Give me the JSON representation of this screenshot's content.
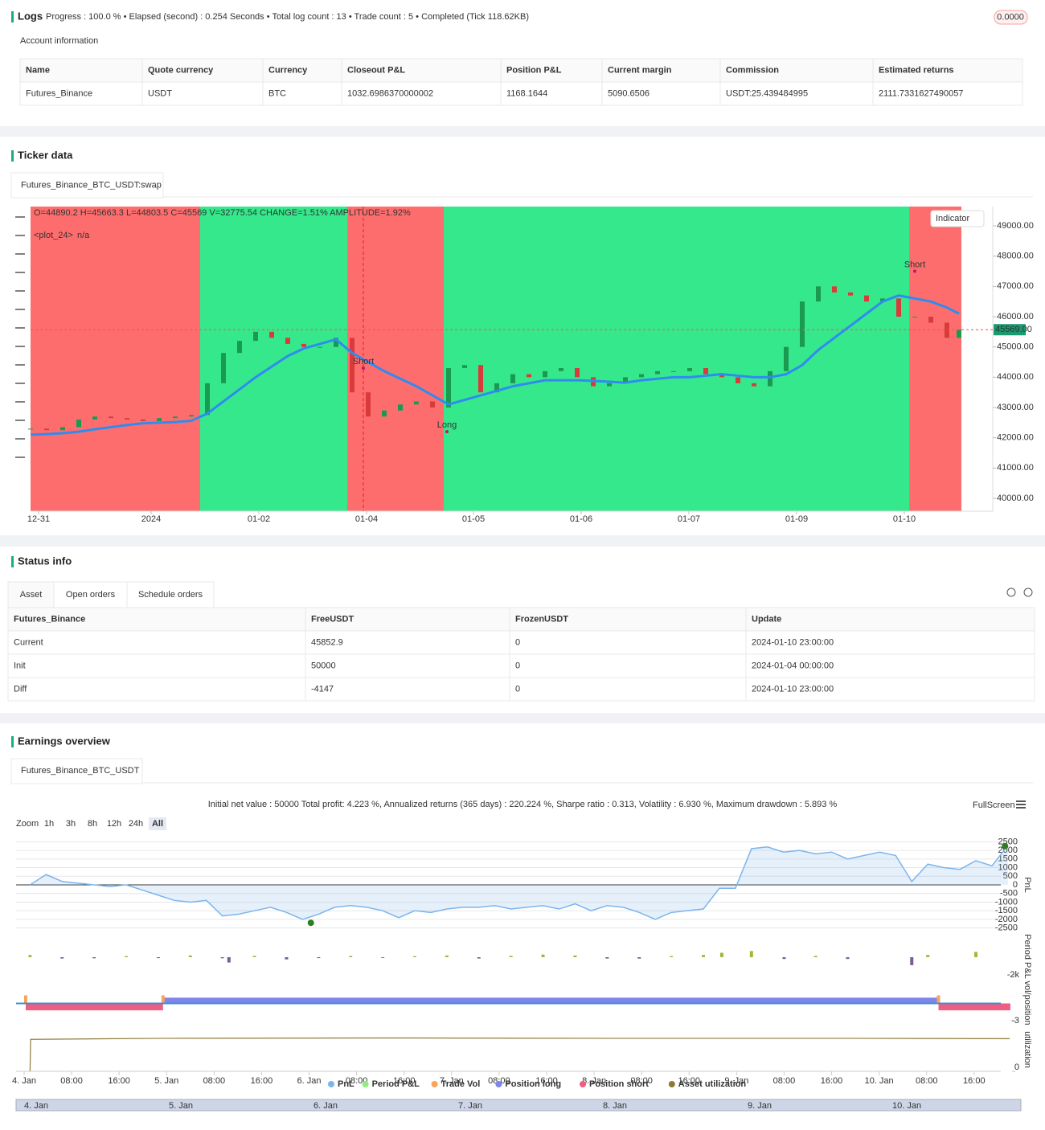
{
  "logs": {
    "title": "Logs",
    "summary": "Progress : 100.0 % • Elapsed (second) : 0.254 Seconds • Total log count : 13 • Trade count : 5 • Completed (Tick 118.62KB)",
    "badge": "0.0000"
  },
  "account": {
    "title": "Account information",
    "headers": [
      "Name",
      "Quote currency",
      "Currency",
      "Closeout P&L",
      "Position P&L",
      "Current margin",
      "Commission",
      "Estimated returns"
    ],
    "rows": [
      [
        "Futures_Binance",
        "USDT",
        "BTC",
        "1032.6986370000002",
        "1168.1644",
        "5090.6506",
        "USDT:25.439484995",
        "2111.7331627490057"
      ]
    ]
  },
  "ticker": {
    "title": "Ticker data",
    "tab": "Futures_Binance_BTC_USDT:swap",
    "chart": {
      "type": "candlestick",
      "ohlc_text": "O=44890.2 H=45663.3 L=44803.5 C=45569 V=32775.54 CHANGE=1.51% AMPLITUDE=1.92%",
      "plot_label": "<plot_24>",
      "plot_value": "n/a",
      "indicator_button": "Indicator",
      "last_price": {
        "value": 45569,
        "label": "45569.00"
      },
      "xlim": [
        0,
        60
      ],
      "ylim": [
        39575,
        49637
      ],
      "yticks": [
        {
          "value": 40000,
          "label": "40000.00"
        },
        {
          "value": 41000,
          "label": "41000.00"
        },
        {
          "value": 42000,
          "label": "42000.00"
        },
        {
          "value": 43000,
          "label": "43000.00"
        },
        {
          "value": 44000,
          "label": "44000.00"
        },
        {
          "value": 45000,
          "label": "45000.00"
        },
        {
          "value": 46000,
          "label": "46000.00"
        },
        {
          "value": 47000,
          "label": "47000.00"
        },
        {
          "value": 48000,
          "label": "48000.00"
        },
        {
          "value": 49000,
          "label": "49000.00"
        }
      ],
      "xticks": [
        {
          "value": 0.5,
          "label": "12-31"
        },
        {
          "value": 7.5,
          "label": "2024"
        },
        {
          "value": 14.2,
          "label": "01-02"
        },
        {
          "value": 20.9,
          "label": "01-04"
        },
        {
          "value": 27.55,
          "label": "01-05"
        },
        {
          "value": 34.25,
          "label": "01-06"
        },
        {
          "value": 40.95,
          "label": "01-07"
        },
        {
          "value": 47.65,
          "label": "01-09"
        },
        {
          "value": 54.35,
          "label": "01-10"
        }
      ],
      "regions": [
        {
          "start": 0,
          "end": 10.55,
          "color": "#fe6d6d"
        },
        {
          "start": 10.55,
          "end": 19.7,
          "color": "#35e88c"
        },
        {
          "start": 19.7,
          "end": 25.7,
          "color": "#fe6d6d"
        },
        {
          "start": 25.7,
          "end": 54.65,
          "color": "#35e88c"
        },
        {
          "start": 54.65,
          "end": 57.9,
          "color": "#fe6d6d"
        }
      ],
      "x": [
        0,
        1,
        2,
        3,
        4,
        5,
        6,
        7,
        8,
        9,
        10,
        11,
        12,
        13,
        14,
        15,
        16,
        17,
        18,
        19,
        20,
        21,
        22,
        23,
        24,
        25,
        26,
        27,
        28,
        29,
        30,
        31,
        32,
        33,
        34,
        35,
        36,
        37,
        38,
        39,
        40,
        41,
        42,
        43,
        44,
        45,
        46,
        47,
        48,
        49,
        50,
        51,
        52,
        53,
        54,
        55,
        56,
        57,
        57.75
      ],
      "close": [
        42300,
        42250,
        42350,
        42600,
        42700,
        42650,
        42600,
        42550,
        42650,
        42700,
        42750,
        43800,
        44800,
        45200,
        45500,
        45300,
        45100,
        45000,
        45000,
        45300,
        43500,
        42700,
        42900,
        43100,
        43200,
        43000,
        44300,
        44400,
        43500,
        43800,
        44100,
        44000,
        44200,
        44300,
        44000,
        43700,
        43800,
        44000,
        44100,
        44200,
        44200,
        44300,
        44100,
        44000,
        43800,
        43700,
        44200,
        45000,
        46500,
        47000,
        46800,
        46700,
        46500,
        46600,
        46000,
        46000,
        45800,
        45300,
        45569
      ],
      "ma": [
        42100,
        42120,
        42150,
        42200,
        42280,
        42350,
        42420,
        42480,
        42500,
        42520,
        42560,
        42800,
        43200,
        43600,
        44000,
        44350,
        44700,
        44950,
        45100,
        45250,
        44800,
        44500,
        44200,
        43950,
        43700,
        43400,
        43100,
        43250,
        43400,
        43550,
        43700,
        43800,
        43900,
        43900,
        43900,
        43880,
        43850,
        43820,
        43900,
        43950,
        44000,
        44000,
        44050,
        44100,
        44050,
        44000,
        44000,
        44100,
        44400,
        44900,
        45300,
        45700,
        46100,
        46500,
        46700,
        46600,
        46500,
        46300,
        46100
      ],
      "color": "#2e8cf0",
      "trades": [
        {
          "x": 20.7,
          "value": 44300,
          "label": "Short"
        },
        {
          "x": 25.9,
          "value": 42200,
          "label": "Long"
        },
        {
          "x": 55,
          "value": 47500,
          "label": "Short"
        }
      ]
    }
  },
  "status": {
    "title": "Status info",
    "tabs": [
      "Asset",
      "Open orders",
      "Schedule orders"
    ],
    "headers": [
      "Futures_Binance",
      "FreeUSDT",
      "FrozenUSDT",
      "Update"
    ],
    "rows": [
      [
        "Current",
        "45852.9",
        "0",
        "2024-01-10 23:00:00"
      ],
      [
        "Init",
        "50000",
        "0",
        "2024-01-04 00:00:00"
      ],
      [
        "Diff",
        "-4147",
        "0",
        "2024-01-10 23:00:00"
      ]
    ]
  },
  "earnings": {
    "title": "Earnings overview",
    "tab": "Futures_Binance_BTC_USDT",
    "stats": "Initial net value : 50000 Total profit: 4.223 %, Annualized returns (365 days) : 220.224 %, Sharpe ratio : 0.313, Volatility : 6.930 %, Maximum drawdown : 5.893 %",
    "fullscreen": "FullScreen",
    "zoom_label": "Zoom",
    "zoom_buttons": [
      "1h",
      "3h",
      "8h",
      "12h",
      "24h",
      "All"
    ],
    "chart": {
      "type": "line",
      "xlim": [
        -1.35,
        167.2
      ],
      "xticks": [
        {
          "value": 0,
          "label": "4. Jan"
        },
        {
          "value": 8,
          "label": "08:00"
        },
        {
          "value": 16,
          "label": "16:00"
        },
        {
          "value": 24,
          "label": "5. Jan"
        },
        {
          "value": 32,
          "label": "08:00"
        },
        {
          "value": 40,
          "label": "16:00"
        },
        {
          "value": 48,
          "label": "6. Jan"
        },
        {
          "value": 56,
          "label": "08:00"
        },
        {
          "value": 64,
          "label": "16:00"
        },
        {
          "value": 72,
          "label": "7. Jan"
        },
        {
          "value": 80,
          "label": "08:00"
        },
        {
          "value": 88,
          "label": "16:00"
        },
        {
          "value": 96,
          "label": "8. Jan"
        },
        {
          "value": 104,
          "label": "08:00"
        },
        {
          "value": 112,
          "label": "16:00"
        },
        {
          "value": 120,
          "label": "9. Jan"
        },
        {
          "value": 128,
          "label": "08:00"
        },
        {
          "value": 136,
          "label": "16:00"
        },
        {
          "value": 144,
          "label": "10. Jan"
        },
        {
          "value": 152,
          "label": "08:00"
        },
        {
          "value": 160,
          "label": "16:00"
        }
      ],
      "pnl": {
        "axis_label": "PnL",
        "ylim": [
          -2750,
          2750
        ],
        "yticks": [
          2500,
          2000,
          1500,
          1000,
          500,
          0,
          -500,
          -1000,
          -1500,
          -2000,
          -2500
        ],
        "x": [
          1,
          3.7,
          6.4,
          9.1,
          11.8,
          14.5,
          17.2,
          19.9,
          22.6,
          25.3,
          28,
          30.7,
          33.4,
          36.1,
          38.8,
          41.5,
          44.2,
          46.9,
          49.6,
          52.3,
          55,
          57.7,
          60.4,
          63.1,
          65.8,
          68.5,
          71.2,
          73.9,
          76.6,
          79.3,
          82,
          84.7,
          87.4,
          90.1,
          92.8,
          95.5,
          98.2,
          100.9,
          103.6,
          106.3,
          109,
          111.7,
          114.4,
          117.1,
          119.8,
          122.5,
          125.2,
          127.9,
          130.6,
          133.3,
          136,
          138.7,
          141.4,
          144.1,
          146.8,
          149.5,
          152.2,
          154.9,
          157.6,
          160.3,
          163,
          165.7
        ],
        "values": [
          0,
          600,
          200,
          100,
          0,
          -100,
          0,
          -300,
          -600,
          -900,
          -1000,
          -900,
          -1800,
          -1700,
          -1500,
          -1300,
          -1600,
          -2000,
          -1700,
          -1300,
          -1200,
          -1300,
          -1500,
          -1900,
          -1500,
          -1600,
          -1400,
          -1300,
          -1300,
          -1200,
          -1400,
          -1300,
          -1200,
          -1400,
          -1100,
          -1500,
          -1200,
          -1300,
          -1600,
          -2000,
          -1600,
          -1500,
          -1400,
          -200,
          -200,
          2100,
          2200,
          1900,
          2000,
          1800,
          1900,
          1500,
          1700,
          1900,
          1700,
          200,
          1200,
          1000,
          900,
          1400,
          1100,
          2300
        ],
        "color": "#7cb5ec",
        "max_marker": {
          "x": 165.2,
          "value": 2250
        },
        "min_marker": {
          "x": 48.3,
          "value": -2200
        }
      },
      "period": {
        "axis_label": "Period P&L",
        "ylim": [
          -2455,
          2273
        ],
        "yticks": [
          {
            "value": -2000,
            "label": "-2k"
          }
        ],
        "x": [
          1,
          6.4,
          11.8,
          17.2,
          22.6,
          28,
          33.4,
          34.5,
          38.8,
          44.2,
          49.6,
          55,
          60.4,
          65.8,
          71.2,
          76.6,
          82,
          87.4,
          92.8,
          98.2,
          103.6,
          109,
          114.4,
          117.5,
          122.5,
          128,
          133.3,
          138.7,
          149.5,
          152.2,
          160.3
        ],
        "values": [
          250,
          -150,
          -120,
          130,
          -100,
          200,
          -120,
          -600,
          150,
          -250,
          -100,
          140,
          -80,
          120,
          200,
          -150,
          150,
          300,
          200,
          -150,
          -160,
          130,
          250,
          500,
          700,
          -200,
          150,
          -200,
          -900,
          250,
          600
        ]
      },
      "position": {
        "axis_label": "vol/position",
        "ylim": [
          -3.7,
          3.7
        ],
        "yticks": [
          -3
        ],
        "long": [
          {
            "start": 23.4,
            "end": 154,
            "value": 1
          }
        ],
        "short": [
          {
            "start": 0.27,
            "end": 23.4,
            "value": -1.2
          },
          {
            "start": 154,
            "end": 166.1,
            "value": -1.2
          }
        ],
        "trade_vol": {
          "x": [
            0.27,
            23.4,
            154
          ],
          "values": [
            1.4,
            1.4,
            1.4
          ]
        }
      },
      "utilization": {
        "axis_label": "utilization",
        "ylim": [
          0,
          1.2
        ],
        "yticks": [
          0
        ],
        "x": [
          1,
          1.1,
          23.4,
          60,
          100,
          140,
          166
        ],
        "values": [
          0,
          0.9,
          0.93,
          0.94,
          0.93,
          0.93,
          0.92
        ]
      },
      "legend": [
        {
          "name": "PnL",
          "color": "#7cb5ec"
        },
        {
          "name": "Period P&L",
          "color": "#90ed7d"
        },
        {
          "name": "Trade Vol",
          "color": "#f7a35c"
        },
        {
          "name": "Position long",
          "color": "#8085e9"
        },
        {
          "name": "Position short",
          "color": "#f15c80"
        },
        {
          "name": "Asset utilization",
          "color": "#8d7a3a"
        }
      ],
      "navigator_labels": [
        {
          "value": 0,
          "label": "4. Jan"
        },
        {
          "value": 24,
          "label": "5. Jan"
        },
        {
          "value": 48,
          "label": "6. Jan"
        },
        {
          "value": 72,
          "label": "7. Jan"
        },
        {
          "value": 96,
          "label": "8. Jan"
        },
        {
          "value": 120,
          "label": "9. Jan"
        },
        {
          "value": 144,
          "label": "10. Jan"
        }
      ]
    }
  }
}
